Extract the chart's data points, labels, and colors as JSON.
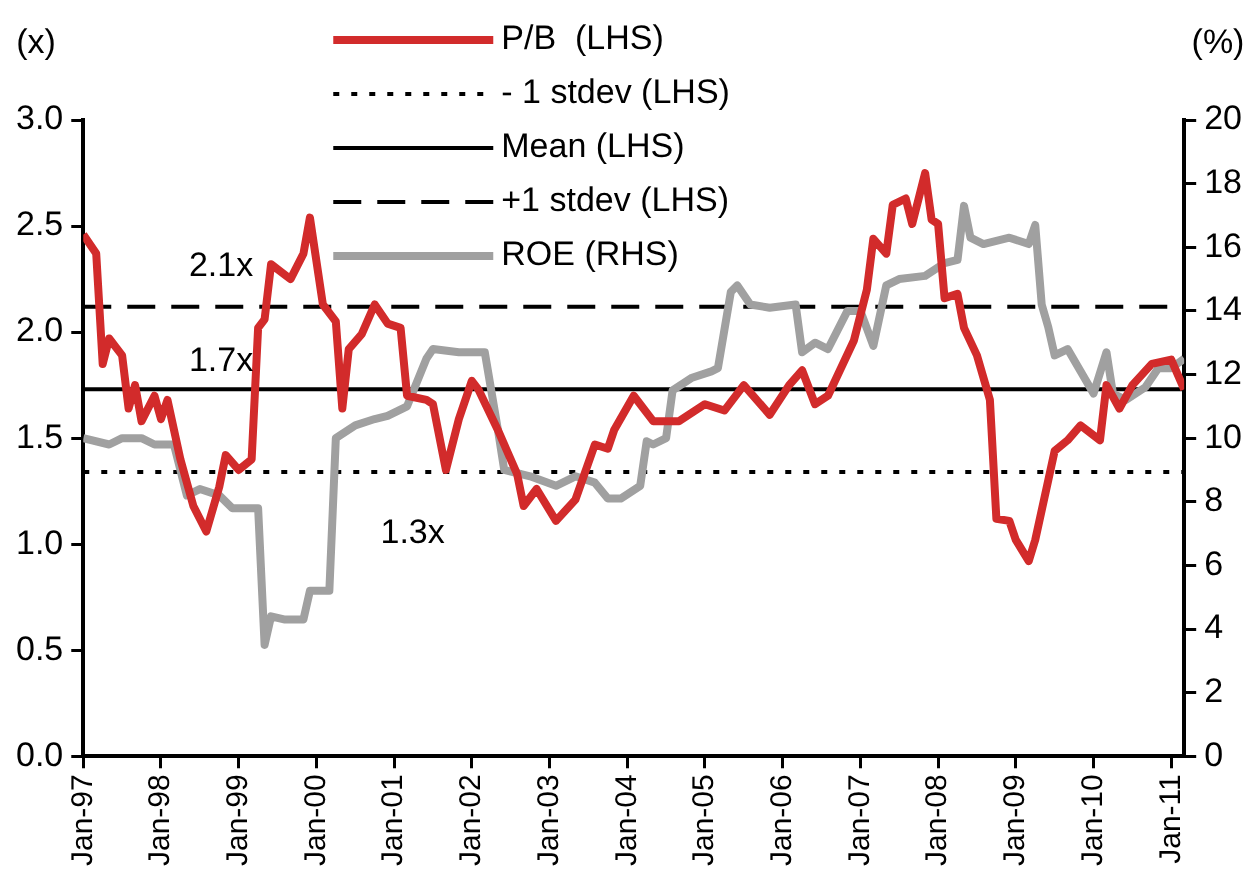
{
  "chart_data": {
    "type": "line",
    "ylabel": "(x)",
    "y2label": "(%)",
    "xlim": [
      "1997-01",
      "2011-03"
    ],
    "xticks": [
      {
        "value": "1997-01",
        "label": "Jan-97"
      },
      {
        "value": "1998-01",
        "label": "Jan-98"
      },
      {
        "value": "1999-01",
        "label": "Jan-99"
      },
      {
        "value": "2000-01",
        "label": "Jan-00"
      },
      {
        "value": "2001-01",
        "label": "Jan-01"
      },
      {
        "value": "2002-01",
        "label": "Jan-02"
      },
      {
        "value": "2003-01",
        "label": "Jan-03"
      },
      {
        "value": "2004-01",
        "label": "Jan-04"
      },
      {
        "value": "2005-01",
        "label": "Jan-05"
      },
      {
        "value": "2006-01",
        "label": "Jan-06"
      },
      {
        "value": "2007-01",
        "label": "Jan-07"
      },
      {
        "value": "2008-01",
        "label": "Jan-08"
      },
      {
        "value": "2009-01",
        "label": "Jan-09"
      },
      {
        "value": "2010-01",
        "label": "Jan-10"
      },
      {
        "value": "2011-01",
        "label": "Jan-11"
      }
    ],
    "ylim": [
      0,
      3
    ],
    "yticks": [
      {
        "value": 0,
        "label": "0.0"
      },
      0.5,
      {
        "value": 1,
        "label": "1.0"
      },
      1.5,
      {
        "value": 2,
        "label": "2.0"
      },
      2.5,
      {
        "value": 3,
        "label": "3.0"
      }
    ],
    "y2lim": [
      0,
      20
    ],
    "y2ticks": [
      0,
      2,
      4,
      6,
      8,
      10,
      12,
      14,
      16,
      18,
      20
    ],
    "grid": false,
    "legend": "top",
    "marker": "none",
    "series": [
      {
        "name": "P/B  (LHS)",
        "color": "#d22b2b",
        "line_style": "solid",
        "x": [
          "1997-01",
          "1997-03",
          "1997-04",
          "1997-05",
          "1997-07",
          "1997-08",
          "1997-09",
          "1997-10",
          "1997-12",
          "1998-01",
          "1998-02",
          "1998-04",
          "1998-06",
          "1998-08",
          "1998-10",
          "1998-11",
          "1999-01",
          "1999-03",
          "1999-04",
          "1999-05",
          "1999-06",
          "1999-09",
          "1999-11",
          "1999-12",
          "2000-02",
          "2000-04",
          "2000-05",
          "2000-06",
          "2000-08",
          "2000-10",
          "2000-12",
          "2001-02",
          "2001-03",
          "2001-06",
          "2001-07",
          "2001-09",
          "2001-11",
          "2002-01",
          "2002-02",
          "2002-05",
          "2002-08",
          "2002-09",
          "2002-11",
          "2003-02",
          "2003-05",
          "2003-08",
          "2003-10",
          "2003-11",
          "2004-02",
          "2004-05",
          "2004-09",
          "2005-01",
          "2005-04",
          "2005-07",
          "2005-11",
          "2006-02",
          "2006-04",
          "2006-06",
          "2006-08",
          "2006-12",
          "2007-02",
          "2007-03",
          "2007-05",
          "2007-06",
          "2007-08",
          "2007-09",
          "2007-11",
          "2007-12",
          "2008-01",
          "2008-02",
          "2008-04",
          "2008-05",
          "2008-07",
          "2008-09",
          "2008-10",
          "2008-12",
          "2009-01",
          "2009-03",
          "2009-04",
          "2009-06",
          "2009-07",
          "2009-09",
          "2009-11",
          "2010-02",
          "2010-03",
          "2010-05",
          "2010-07",
          "2010-10",
          "2011-01",
          "2011-03"
        ],
        "values": [
          2.46,
          2.37,
          1.85,
          1.97,
          1.89,
          1.64,
          1.75,
          1.58,
          1.7,
          1.59,
          1.68,
          1.4,
          1.18,
          1.06,
          1.27,
          1.42,
          1.35,
          1.4,
          2.02,
          2.06,
          2.32,
          2.25,
          2.37,
          2.54,
          2.13,
          2.05,
          1.64,
          1.92,
          1.99,
          2.13,
          2.04,
          2.02,
          1.7,
          1.68,
          1.66,
          1.35,
          1.59,
          1.77,
          1.73,
          1.54,
          1.33,
          1.18,
          1.26,
          1.11,
          1.21,
          1.47,
          1.45,
          1.54,
          1.7,
          1.58,
          1.58,
          1.66,
          1.63,
          1.75,
          1.61,
          1.75,
          1.82,
          1.66,
          1.7,
          1.96,
          2.2,
          2.44,
          2.37,
          2.6,
          2.63,
          2.51,
          2.75,
          2.53,
          2.51,
          2.16,
          2.18,
          2.02,
          1.89,
          1.68,
          1.12,
          1.11,
          1.02,
          0.92,
          1.02,
          1.3,
          1.44,
          1.49,
          1.56,
          1.49,
          1.75,
          1.64,
          1.75,
          1.85,
          1.87,
          1.73
        ]
      },
      {
        "name": "- 1 stdev (LHS)",
        "color": "#000000",
        "line_style": "dotted",
        "x": [
          "1997-01",
          "2011-03"
        ],
        "values": [
          1.34,
          1.34
        ]
      },
      {
        "name": "Mean (LHS)",
        "color": "#000000",
        "line_style": "solid",
        "x": [
          "1997-01",
          "2011-03"
        ],
        "values": [
          1.73,
          1.73
        ]
      },
      {
        "name": "+1 stdev (LHS)",
        "color": "#000000",
        "line_style": "dashed",
        "x": [
          "1997-01",
          "2011-03"
        ],
        "values": [
          2.12,
          2.12
        ]
      },
      {
        "name": "ROE (RHS)",
        "color": "#a0a0a0",
        "line_style": "solid",
        "axis": "y2",
        "x": [
          "1997-01",
          "1997-05",
          "1997-07",
          "1997-10",
          "1997-12",
          "1998-03",
          "1998-05",
          "1998-07",
          "1998-10",
          "1998-12",
          "1999-04",
          "1999-05",
          "1999-06",
          "1999-08",
          "1999-11",
          "1999-12",
          "2000-03",
          "2000-04",
          "2000-07",
          "2000-10",
          "2000-12",
          "2001-03",
          "2001-06",
          "2001-07",
          "2001-11",
          "2002-03",
          "2002-05",
          "2002-06",
          "2002-10",
          "2003-02",
          "2003-05",
          "2003-08",
          "2003-10",
          "2003-12",
          "2004-03",
          "2004-04",
          "2004-05",
          "2004-07",
          "2004-08",
          "2004-11",
          "2005-02",
          "2005-03",
          "2005-05",
          "2005-06",
          "2005-08",
          "2005-11",
          "2006-03",
          "2006-04",
          "2006-06",
          "2006-08",
          "2006-11",
          "2007-01",
          "2007-03",
          "2007-05",
          "2007-07",
          "2007-11",
          "2008-02",
          "2008-04",
          "2008-05",
          "2008-06",
          "2008-08",
          "2008-12",
          "2009-03",
          "2009-04",
          "2009-05",
          "2009-06",
          "2009-07",
          "2009-09",
          "2009-11",
          "2010-01",
          "2010-03",
          "2010-04",
          "2010-06",
          "2010-09",
          "2010-11",
          "2011-01",
          "2011-03"
        ],
        "values": [
          10.0,
          9.8,
          10.0,
          10.0,
          9.8,
          9.8,
          8.2,
          8.4,
          8.2,
          7.8,
          7.8,
          3.5,
          4.4,
          4.3,
          4.3,
          5.2,
          5.2,
          10.0,
          10.4,
          10.6,
          10.7,
          11.0,
          12.5,
          12.8,
          12.7,
          12.7,
          10.3,
          9.0,
          8.8,
          8.5,
          8.8,
          8.6,
          8.1,
          8.1,
          8.5,
          9.9,
          9.8,
          10.0,
          11.5,
          11.9,
          12.1,
          12.2,
          14.6,
          14.8,
          14.2,
          14.1,
          14.2,
          12.7,
          13.0,
          12.8,
          14.0,
          14.0,
          12.9,
          14.8,
          15.0,
          15.1,
          15.5,
          15.6,
          17.3,
          16.3,
          16.1,
          16.3,
          16.1,
          16.7,
          14.2,
          13.5,
          12.6,
          12.8,
          12.1,
          11.4,
          12.7,
          11.4,
          11.2,
          11.6,
          12.2,
          12.2,
          12.5
        ]
      }
    ],
    "annotations": [
      "2.1x",
      "1.7x",
      "1.3x"
    ]
  }
}
